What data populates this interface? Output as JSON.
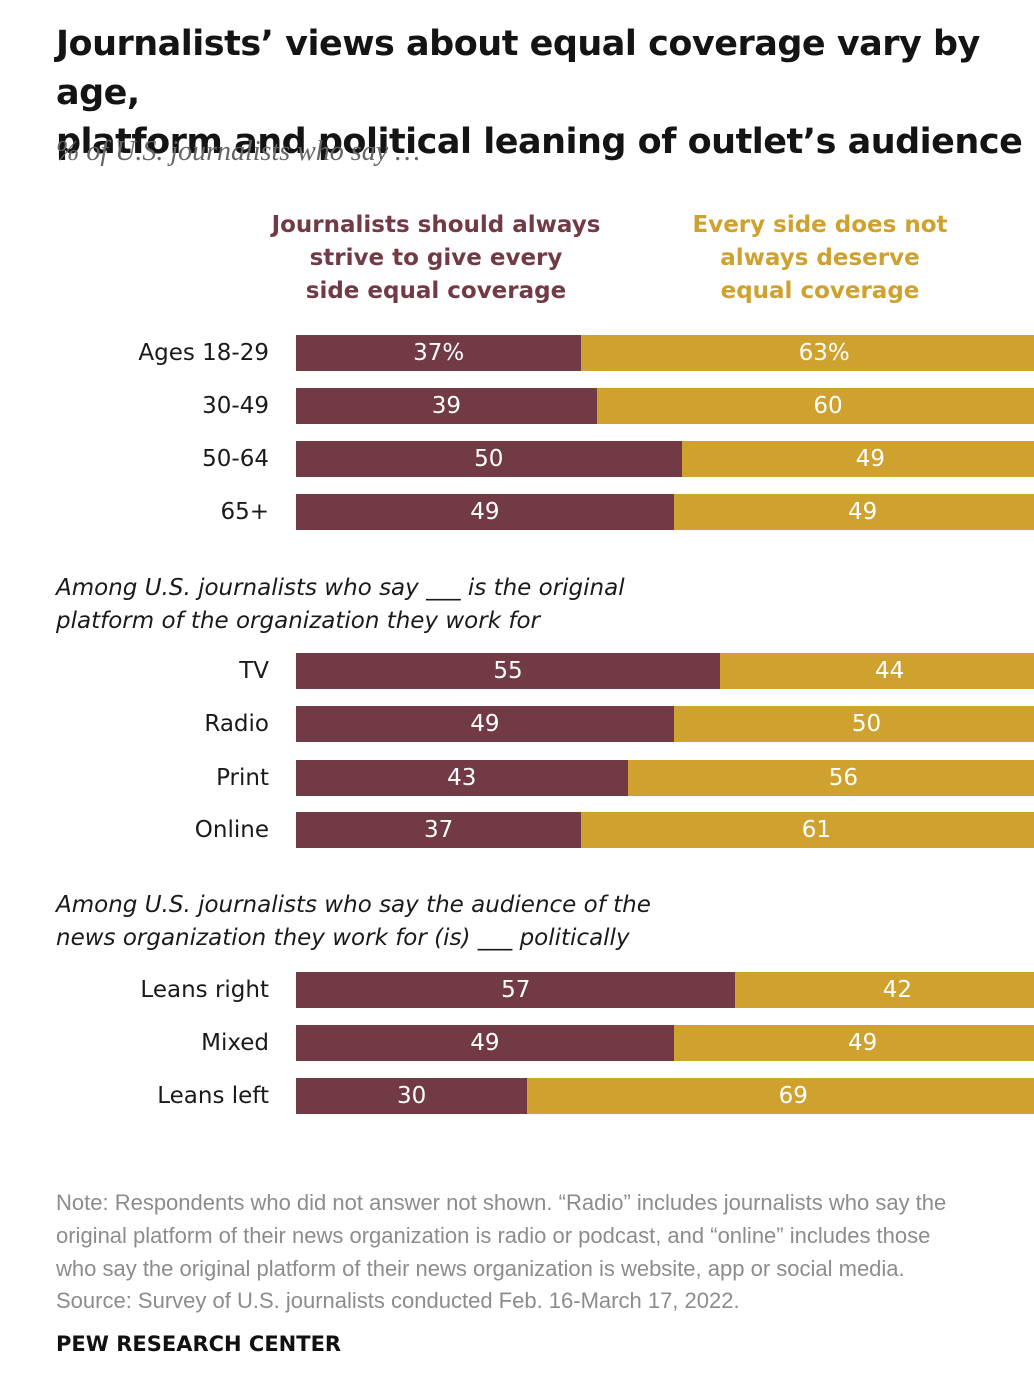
{
  "title_line1": "Journalists’ views about equal coverage vary by age,",
  "title_line2": "platform and political leaning of outlet’s audience",
  "subtitle": "% of U.S. journalists who say …",
  "legend": {
    "left": [
      "Journalists should always",
      "strive to give every",
      "side equal coverage"
    ],
    "right": [
      "Every side does not",
      "always deserve",
      "equal coverage"
    ]
  },
  "colors": {
    "equal": "#723a44",
    "not_equal": "#cfa12f"
  },
  "chart_data": {
    "type": "bar",
    "orientation": "horizontal",
    "stacked": true,
    "title": "Journalists’ views about equal coverage vary by age, platform and political leaning of outlet’s audience",
    "subtitle": "% of U.S. journalists who say …",
    "series": [
      {
        "name": "Journalists should always strive to give every side equal coverage",
        "color": "#723a44"
      },
      {
        "name": "Every side does not always deserve equal coverage",
        "color": "#cfa12f"
      }
    ],
    "groups": [
      {
        "label": [],
        "rows": [
          {
            "label": "Ages 18-29",
            "values": [
              37,
              63
            ],
            "display": [
              "37%",
              "63%"
            ]
          },
          {
            "label": "30-49",
            "values": [
              39,
              60
            ],
            "display": [
              "39",
              "60"
            ]
          },
          {
            "label": "50-64",
            "values": [
              50,
              49
            ],
            "display": [
              "50",
              "49"
            ]
          },
          {
            "label": "65+",
            "values": [
              49,
              49
            ],
            "display": [
              "49",
              "49"
            ]
          }
        ]
      },
      {
        "label": [
          "Among U.S. journalists who say ___ is the original",
          "platform of the organization they work for"
        ],
        "rows": [
          {
            "label": "TV",
            "values": [
              55,
              44
            ],
            "display": [
              "55",
              "44"
            ]
          },
          {
            "label": "Radio",
            "values": [
              49,
              50
            ],
            "display": [
              "49",
              "50"
            ]
          },
          {
            "label": "Print",
            "values": [
              43,
              56
            ],
            "display": [
              "43",
              "56"
            ]
          },
          {
            "label": "Online",
            "values": [
              37,
              61
            ],
            "display": [
              "37",
              "61"
            ]
          }
        ]
      },
      {
        "label": [
          "Among U.S. journalists who say the audience of the",
          "news organization they work for (is) ___ politically"
        ],
        "rows": [
          {
            "label": "Leans right",
            "values": [
              57,
              42
            ],
            "display": [
              "57",
              "42"
            ]
          },
          {
            "label": "Mixed",
            "values": [
              49,
              49
            ],
            "display": [
              "49",
              "49"
            ]
          },
          {
            "label": "Leans left",
            "values": [
              30,
              69
            ],
            "display": [
              "30",
              "69"
            ]
          }
        ]
      }
    ]
  },
  "note": [
    "Note: Respondents who did not answer not shown. “Radio” includes journalists who say the",
    "original platform of their news organization is radio or podcast, and “online” includes those",
    "who say the original platform of their news organization is website, app or social media."
  ],
  "source": "Source: Survey of U.S. journalists conducted Feb. 16-March 17, 2022.",
  "brand": "PEW RESEARCH CENTER"
}
